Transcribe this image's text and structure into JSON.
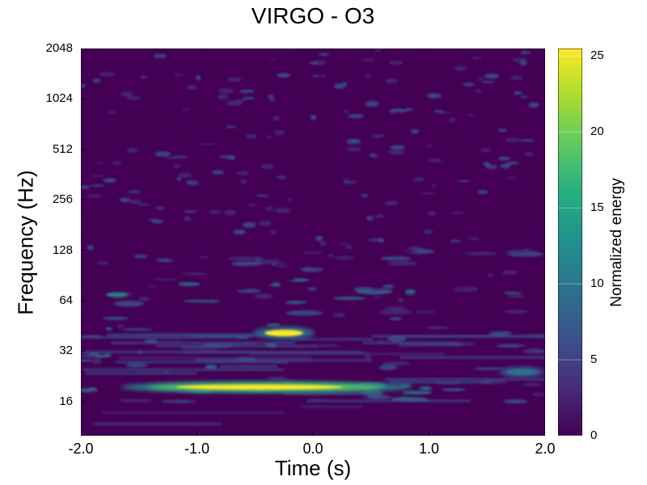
{
  "chart_data": {
    "type": "heatmap",
    "title": "VIRGO - O3",
    "xlabel": "Time (s)",
    "ylabel": "Frequency (Hz)",
    "xlim": [
      -2.0,
      2.0
    ],
    "ylim": [
      10,
      2048
    ],
    "yscale": "log2",
    "x_ticks": [
      "-2.0",
      "-1.0",
      "0.0",
      "1.0",
      "2.0"
    ],
    "x_tick_values": [
      -2.0,
      -1.0,
      0.0,
      1.0,
      2.0
    ],
    "y_ticks": [
      "16",
      "32",
      "64",
      "128",
      "256",
      "512",
      "1024",
      "2048"
    ],
    "y_tick_values": [
      16,
      32,
      64,
      128,
      256,
      512,
      1024,
      2048
    ],
    "colorbar": {
      "label": "Normalized energy",
      "range": [
        0,
        25.5
      ],
      "ticks": [
        "0",
        "5",
        "10",
        "15",
        "20",
        "25"
      ],
      "tick_values": [
        0,
        5,
        10,
        15,
        20,
        25
      ],
      "colormap": "viridis"
    },
    "features": [
      {
        "name": "low-frequency line",
        "t_range": [
          -1.6,
          0.8
        ],
        "freq_hz": 19.5,
        "peak_energy": 25
      },
      {
        "name": "transient blob",
        "t_center": -0.25,
        "freq_hz": 41,
        "peak_energy": 25
      },
      {
        "name": "edge patch",
        "t_range": [
          1.6,
          2.0
        ],
        "freq_hz": 24,
        "peak_energy": 10
      }
    ]
  },
  "colors": {
    "background": "#440154",
    "viridis": [
      "#440154",
      "#472c7a",
      "#3b518b",
      "#2c718e",
      "#21908d",
      "#27ad81",
      "#5cc863",
      "#aadc32",
      "#fde725"
    ]
  }
}
